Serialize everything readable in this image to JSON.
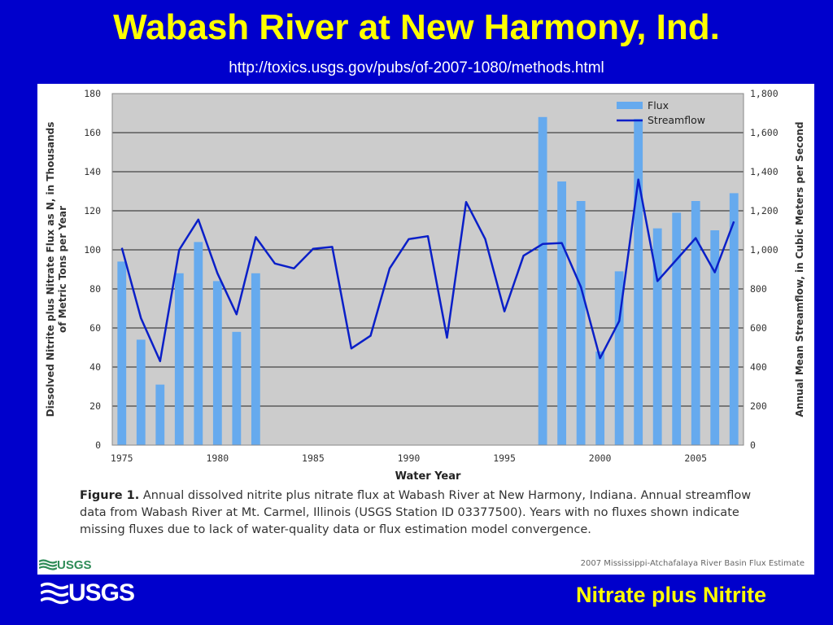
{
  "slide": {
    "title": "Wabash River at New Harmony, Ind.",
    "subtitle": "http://toxics.usgs.gov/pubs/of-2007-1080/methods.html",
    "footer_text": "Nitrate plus Nitrite",
    "footer_logo": "USGS",
    "background_color": "#0000cc",
    "title_color": "#ffff00"
  },
  "figure": {
    "caption_label": "Figure 1.",
    "caption_text": "Annual dissolved nitrite plus nitrate flux at Wabash River at New Harmony, Indiana. Annual streamflow data from Wabash River at Mt. Carmel, Illinois (USGS Station ID 03377500). Years with no fluxes shown indicate missing fluxes due to lack of water-quality data or flux estimation model convergence.",
    "logo_text": "USGS",
    "credit": "2007 Mississippi-Atchafalaya River Basin Flux Estimate"
  },
  "chart_data": {
    "type": "bar",
    "xlabel": "Water Year",
    "ylabel_left": "Dissolved Nitrite plus Nitrate Flux as N, in Thousands of Metric Tons per Year",
    "ylabel_right": "Annual Mean Streamflow, in Cubic Meters per Second",
    "x_range": [
      1974.5,
      2007.5
    ],
    "x_ticks": [
      1975,
      1980,
      1985,
      1990,
      1995,
      2000,
      2005
    ],
    "ylim_left": [
      0,
      180
    ],
    "y_ticks_left": [
      0,
      20,
      40,
      60,
      80,
      100,
      120,
      140,
      160,
      180
    ],
    "y_tick_labels_left": [
      "0",
      "20",
      "40",
      "60",
      "80",
      "100",
      "120",
      "140",
      "160",
      "180"
    ],
    "ylim_right": [
      0,
      1800
    ],
    "y_ticks_right": [
      0,
      200,
      400,
      600,
      800,
      1000,
      1200,
      1400,
      1600,
      1800
    ],
    "y_tick_labels_right": [
      "0",
      "200",
      "400",
      "600",
      "800",
      "1,000",
      "1,200",
      "1,400",
      "1,600",
      "1,800"
    ],
    "grid": true,
    "legend_position": "top-right",
    "plot_background": "#cccccc",
    "series": [
      {
        "name": "Flux",
        "kind": "bar",
        "axis": "left",
        "color": "#66aaee",
        "x": [
          1975,
          1976,
          1977,
          1978,
          1979,
          1980,
          1981,
          1982,
          1997,
          1998,
          1999,
          2000,
          2001,
          2002,
          2003,
          2004,
          2005,
          2006,
          2007
        ],
        "values": [
          94,
          54,
          31,
          88,
          104,
          84,
          58,
          88,
          168,
          135,
          125,
          48,
          89,
          167,
          111,
          119,
          125,
          110,
          129
        ]
      },
      {
        "name": "Streamflow",
        "kind": "line",
        "axis": "right",
        "color": "#0a1fc8",
        "x": [
          1975,
          1976,
          1977,
          1978,
          1979,
          1980,
          1981,
          1982,
          1983,
          1984,
          1985,
          1986,
          1987,
          1988,
          1989,
          1990,
          1991,
          1992,
          1993,
          1994,
          1995,
          1996,
          1997,
          1998,
          1999,
          2000,
          2001,
          2002,
          2003,
          2004,
          2005,
          2006,
          2007
        ],
        "values": [
          1010,
          650,
          430,
          1000,
          1155,
          880,
          670,
          1065,
          930,
          905,
          1005,
          1015,
          495,
          560,
          905,
          1055,
          1070,
          550,
          1245,
          1055,
          685,
          970,
          1030,
          1035,
          810,
          445,
          635,
          1360,
          840,
          950,
          1060,
          885,
          1145
        ]
      }
    ]
  }
}
